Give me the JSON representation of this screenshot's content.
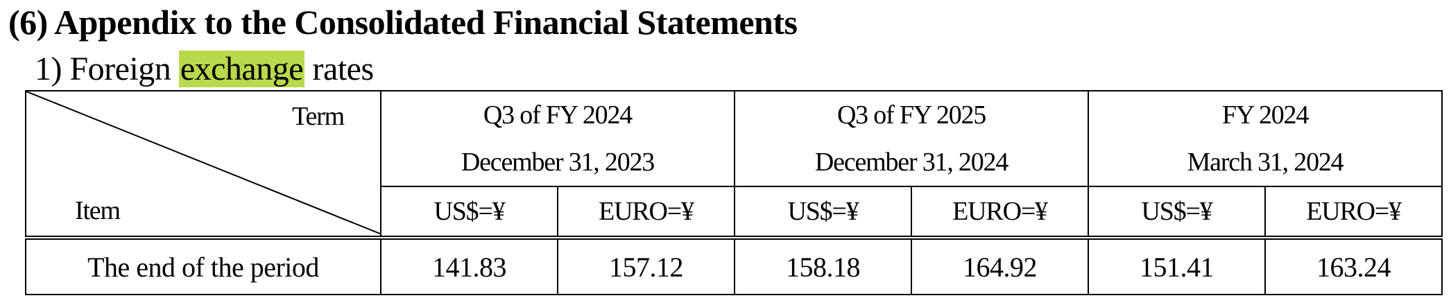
{
  "section_title": "(6) Appendix to the Consolidated Financial Statements",
  "sub_title": {
    "prefix": "1) Foreign ",
    "highlighted": "exchange",
    "suffix": " rates"
  },
  "highlight_color": "#b9d84c",
  "table": {
    "corner_top": "Term",
    "corner_bottom": "Item",
    "terms": [
      {
        "name": "Q3 of FY 2024",
        "date": "December 31, 2023"
      },
      {
        "name": "Q3 of FY 2025",
        "date": "December 31, 2024"
      },
      {
        "name": "FY 2024",
        "date": "March 31, 2024"
      }
    ],
    "currencies": [
      "US$=¥",
      "EURO=¥",
      "US$=¥",
      "EURO=¥",
      "US$=¥",
      "EURO=¥"
    ],
    "rows": [
      {
        "label": "The end of the period",
        "values": [
          "141.83",
          "157.12",
          "158.18",
          "164.92",
          "151.41",
          "163.24"
        ]
      }
    ]
  }
}
